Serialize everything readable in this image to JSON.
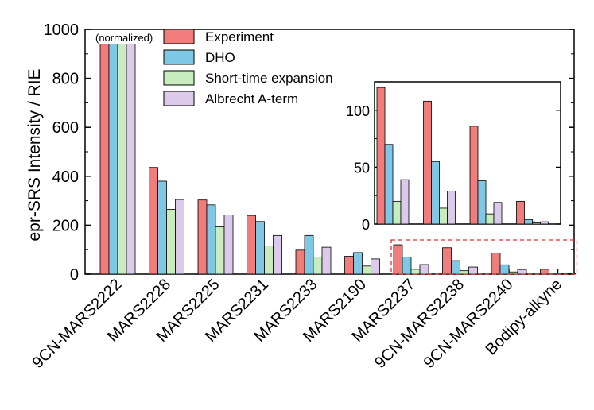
{
  "chart_data": {
    "type": "bar",
    "title": "",
    "xlabel": "",
    "ylabel": "epr-SRS Intensity / RIE",
    "ylim": [
      0,
      1000
    ],
    "yticks": [
      0,
      200,
      400,
      600,
      800,
      1000
    ],
    "categories": [
      "9CN-MARS2222",
      "MARS2228",
      "MARS2225",
      "MARS2231",
      "MARS2233",
      "MARS2190",
      "MARS2237",
      "9CN-MARS2238",
      "9CN-MARS2240",
      "Bodipy-alkyne"
    ],
    "series": [
      {
        "name": "Experiment",
        "color": "#f07c7c",
        "values": [
          940,
          436,
          303,
          240,
          98,
          73,
          120,
          108,
          86,
          20
        ]
      },
      {
        "name": "DHO",
        "color": "#7ec8e6",
        "values": [
          940,
          380,
          283,
          215,
          158,
          88,
          70,
          55,
          38,
          4
        ]
      },
      {
        "name": "Short-time expansion",
        "color": "#c8ecbe",
        "values": [
          940,
          265,
          193,
          115,
          70,
          33,
          20,
          14,
          9,
          1
        ]
      },
      {
        "name": "Albrecht A-term",
        "color": "#dccaea",
        "values": [
          940,
          305,
          242,
          158,
          110,
          62,
          39,
          29,
          19,
          2
        ]
      }
    ],
    "annotation": "(normalized)",
    "legend": "top-center",
    "grid": false,
    "inset": {
      "categories": [
        "MARS2237",
        "9CN-MARS2238",
        "9CN-MARS2240",
        "Bodipy-alkyne"
      ],
      "ylim": [
        0,
        125
      ],
      "yticks": [
        0,
        50,
        100
      ],
      "highlight_color": "#e03030"
    }
  }
}
